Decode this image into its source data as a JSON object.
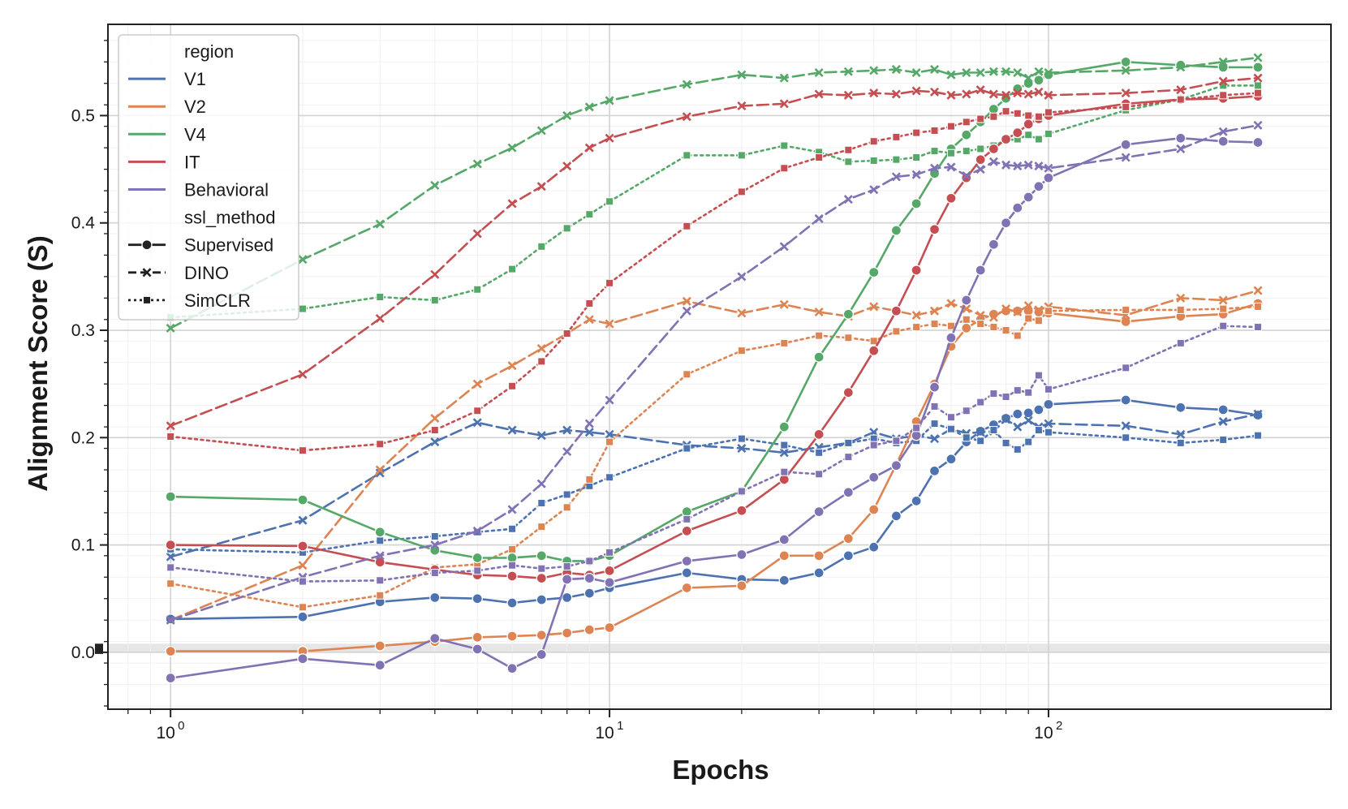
{
  "chart_data": {
    "type": "line",
    "title": "",
    "xlabel": "Epochs",
    "ylabel": "Alignment Score (S)",
    "xscale": "log",
    "xlim": [
      0.72,
      440
    ],
    "ylim": [
      -0.053,
      0.585
    ],
    "yticks": [
      0.0,
      0.1,
      0.2,
      0.3,
      0.4,
      0.5
    ],
    "ytick_labels": [
      "0.0",
      "0.1",
      "0.2",
      "0.3",
      "0.4",
      "0.5"
    ],
    "xticks": [
      {
        "value": 1,
        "base": "10",
        "exp": "0"
      },
      {
        "value": 10,
        "base": "10",
        "exp": "1"
      },
      {
        "value": 100,
        "base": "10",
        "exp": "2"
      }
    ],
    "grid": true,
    "reference_band": [
      0.0,
      0.008
    ],
    "legend": {
      "placement": "top-left",
      "hue_title": "region",
      "style_title": "ssl_method",
      "regions": [
        {
          "name": "V1",
          "color": "#4c72b0"
        },
        {
          "name": "V2",
          "color": "#dd8452"
        },
        {
          "name": "V4",
          "color": "#55a868"
        },
        {
          "name": "IT",
          "color": "#c44e52"
        },
        {
          "name": "Behavioral",
          "color": "#8172b3"
        }
      ],
      "methods": [
        {
          "name": "Supervised",
          "dash": "solid",
          "marker": "circle"
        },
        {
          "name": "DINO",
          "dash": "dashed",
          "marker": "x"
        },
        {
          "name": "SimCLR",
          "dash": "dotted",
          "marker": "square"
        }
      ]
    },
    "series": [
      {
        "region": "V1",
        "method": "Supervised",
        "color": "#4c72b0",
        "x": [
          1,
          2,
          3,
          4,
          5,
          6,
          7,
          8,
          9,
          10,
          15,
          20,
          25,
          30,
          35,
          40,
          45,
          50,
          55,
          60,
          65,
          70,
          75,
          80,
          85,
          90,
          95,
          100,
          150,
          200,
          250,
          300
        ],
        "y": [
          0.031,
          0.033,
          0.047,
          0.051,
          0.05,
          0.046,
          0.049,
          0.051,
          0.055,
          0.06,
          0.074,
          0.068,
          0.067,
          0.074,
          0.09,
          0.098,
          0.127,
          0.141,
          0.169,
          0.18,
          0.196,
          0.206,
          0.212,
          0.218,
          0.222,
          0.223,
          0.226,
          0.231,
          0.235,
          0.228,
          0.226,
          0.221
        ]
      },
      {
        "region": "V1",
        "method": "DINO",
        "color": "#4c72b0",
        "x": [
          1,
          2,
          3,
          4,
          5,
          6,
          7,
          8,
          9,
          10,
          15,
          20,
          25,
          30,
          35,
          40,
          45,
          50,
          55,
          60,
          65,
          70,
          75,
          80,
          85,
          90,
          95,
          100,
          150,
          200,
          250,
          300
        ],
        "y": [
          0.089,
          0.123,
          0.167,
          0.196,
          0.214,
          0.207,
          0.202,
          0.207,
          0.205,
          0.203,
          0.193,
          0.19,
          0.186,
          0.191,
          0.195,
          0.205,
          0.199,
          0.202,
          0.199,
          0.208,
          0.204,
          0.205,
          0.206,
          0.217,
          0.21,
          0.216,
          0.21,
          0.213,
          0.211,
          0.203,
          0.215,
          0.222
        ]
      },
      {
        "region": "V1",
        "method": "SimCLR",
        "color": "#4c72b0",
        "x": [
          1,
          2,
          3,
          4,
          5,
          6,
          7,
          8,
          9,
          10,
          15,
          20,
          25,
          30,
          35,
          40,
          45,
          50,
          55,
          60,
          65,
          70,
          75,
          80,
          85,
          90,
          95,
          100,
          150,
          200,
          250,
          300
        ],
        "y": [
          0.096,
          0.093,
          0.104,
          0.108,
          0.112,
          0.115,
          0.139,
          0.147,
          0.155,
          0.163,
          0.19,
          0.199,
          0.193,
          0.186,
          0.195,
          0.199,
          0.195,
          0.197,
          0.213,
          0.208,
          0.2,
          0.197,
          0.207,
          0.195,
          0.189,
          0.196,
          0.207,
          0.205,
          0.2,
          0.195,
          0.198,
          0.202
        ]
      },
      {
        "region": "V2",
        "method": "Supervised",
        "color": "#dd8452",
        "x": [
          1,
          2,
          3,
          4,
          5,
          6,
          7,
          8,
          9,
          10,
          15,
          20,
          25,
          30,
          35,
          40,
          45,
          50,
          55,
          60,
          65,
          70,
          75,
          80,
          85,
          90,
          95,
          100,
          150,
          200,
          250,
          300
        ],
        "y": [
          0.001,
          0.001,
          0.006,
          0.01,
          0.014,
          0.015,
          0.016,
          0.018,
          0.021,
          0.023,
          0.06,
          0.062,
          0.09,
          0.09,
          0.106,
          0.133,
          0.175,
          0.215,
          0.25,
          0.285,
          0.302,
          0.31,
          0.315,
          0.318,
          0.318,
          0.318,
          0.317,
          0.316,
          0.308,
          0.313,
          0.315,
          0.325
        ]
      },
      {
        "region": "V2",
        "method": "DINO",
        "color": "#dd8452",
        "x": [
          1,
          2,
          3,
          4,
          5,
          6,
          7,
          8,
          9,
          10,
          15,
          20,
          25,
          30,
          35,
          40,
          45,
          50,
          55,
          60,
          65,
          70,
          75,
          80,
          85,
          90,
          95,
          100,
          150,
          200,
          250,
          300
        ],
        "y": [
          0.03,
          0.081,
          0.17,
          0.218,
          0.25,
          0.267,
          0.283,
          0.297,
          0.31,
          0.306,
          0.327,
          0.316,
          0.324,
          0.317,
          0.313,
          0.322,
          0.318,
          0.314,
          0.318,
          0.325,
          0.32,
          0.314,
          0.312,
          0.32,
          0.317,
          0.323,
          0.319,
          0.322,
          0.314,
          0.33,
          0.328,
          0.337
        ]
      },
      {
        "region": "V2",
        "method": "SimCLR",
        "color": "#dd8452",
        "x": [
          1,
          2,
          3,
          4,
          5,
          6,
          7,
          8,
          9,
          10,
          15,
          20,
          25,
          30,
          35,
          40,
          45,
          50,
          55,
          60,
          65,
          70,
          75,
          80,
          85,
          90,
          95,
          100,
          150,
          200,
          250,
          300
        ],
        "y": [
          0.064,
          0.042,
          0.053,
          0.079,
          0.082,
          0.096,
          0.117,
          0.135,
          0.161,
          0.196,
          0.259,
          0.281,
          0.288,
          0.295,
          0.293,
          0.29,
          0.299,
          0.303,
          0.306,
          0.304,
          0.31,
          0.306,
          0.303,
          0.3,
          0.295,
          0.311,
          0.309,
          0.318,
          0.319,
          0.319,
          0.32,
          0.322
        ]
      },
      {
        "region": "V4",
        "method": "Supervised",
        "color": "#55a868",
        "x": [
          1,
          2,
          3,
          4,
          5,
          6,
          7,
          8,
          9,
          10,
          15,
          20,
          25,
          30,
          35,
          40,
          45,
          50,
          55,
          60,
          65,
          70,
          75,
          80,
          85,
          90,
          95,
          100,
          150,
          200,
          250,
          300
        ],
        "y": [
          0.145,
          0.142,
          0.112,
          0.095,
          0.088,
          0.088,
          0.09,
          0.085,
          0.085,
          0.09,
          0.131,
          0.15,
          0.21,
          0.275,
          0.315,
          0.354,
          0.393,
          0.418,
          0.446,
          0.469,
          0.482,
          0.494,
          0.506,
          0.516,
          0.525,
          0.53,
          0.533,
          0.538,
          0.55,
          0.547,
          0.545,
          0.545
        ]
      },
      {
        "region": "V4",
        "method": "DINO",
        "color": "#55a868",
        "x": [
          1,
          2,
          3,
          4,
          5,
          6,
          7,
          8,
          9,
          10,
          15,
          20,
          25,
          30,
          35,
          40,
          45,
          50,
          55,
          60,
          65,
          70,
          75,
          80,
          85,
          90,
          95,
          100,
          150,
          200,
          250,
          300
        ],
        "y": [
          0.302,
          0.366,
          0.399,
          0.435,
          0.455,
          0.47,
          0.486,
          0.5,
          0.508,
          0.514,
          0.529,
          0.538,
          0.535,
          0.54,
          0.541,
          0.542,
          0.543,
          0.54,
          0.543,
          0.538,
          0.54,
          0.54,
          0.541,
          0.541,
          0.54,
          0.535,
          0.541,
          0.54,
          0.542,
          0.545,
          0.55,
          0.554
        ]
      },
      {
        "region": "V4",
        "method": "SimCLR",
        "color": "#55a868",
        "x": [
          1,
          2,
          3,
          4,
          5,
          6,
          7,
          8,
          9,
          10,
          15,
          20,
          25,
          30,
          35,
          40,
          45,
          50,
          55,
          60,
          65,
          70,
          75,
          80,
          85,
          90,
          95,
          100,
          150,
          200,
          250,
          300
        ],
        "y": [
          0.312,
          0.32,
          0.331,
          0.328,
          0.338,
          0.357,
          0.378,
          0.395,
          0.408,
          0.42,
          0.463,
          0.463,
          0.472,
          0.466,
          0.457,
          0.458,
          0.459,
          0.461,
          0.467,
          0.465,
          0.467,
          0.469,
          0.472,
          0.477,
          0.478,
          0.482,
          0.478,
          0.483,
          0.505,
          0.515,
          0.528,
          0.528
        ]
      },
      {
        "region": "IT",
        "method": "Supervised",
        "color": "#c44e52",
        "x": [
          1,
          2,
          3,
          4,
          5,
          6,
          7,
          8,
          9,
          10,
          15,
          20,
          25,
          30,
          35,
          40,
          45,
          50,
          55,
          60,
          65,
          70,
          75,
          80,
          85,
          90,
          95,
          100,
          150,
          200,
          250,
          300
        ],
        "y": [
          0.1,
          0.099,
          0.084,
          0.077,
          0.072,
          0.071,
          0.069,
          0.074,
          0.072,
          0.076,
          0.113,
          0.132,
          0.161,
          0.203,
          0.242,
          0.281,
          0.318,
          0.356,
          0.394,
          0.423,
          0.442,
          0.459,
          0.469,
          0.478,
          0.484,
          0.492,
          0.497,
          0.5,
          0.511,
          0.515,
          0.516,
          0.518
        ]
      },
      {
        "region": "IT",
        "method": "DINO",
        "color": "#c44e52",
        "x": [
          1,
          2,
          3,
          4,
          5,
          6,
          7,
          8,
          9,
          10,
          15,
          20,
          25,
          30,
          35,
          40,
          45,
          50,
          55,
          60,
          65,
          70,
          75,
          80,
          85,
          90,
          95,
          100,
          150,
          200,
          250,
          300
        ],
        "y": [
          0.211,
          0.259,
          0.311,
          0.352,
          0.39,
          0.418,
          0.434,
          0.453,
          0.47,
          0.479,
          0.499,
          0.509,
          0.511,
          0.52,
          0.519,
          0.521,
          0.52,
          0.523,
          0.522,
          0.519,
          0.52,
          0.524,
          0.52,
          0.519,
          0.521,
          0.52,
          0.522,
          0.519,
          0.521,
          0.524,
          0.532,
          0.535
        ]
      },
      {
        "region": "IT",
        "method": "SimCLR",
        "color": "#c44e52",
        "x": [
          1,
          2,
          3,
          4,
          5,
          6,
          7,
          8,
          9,
          10,
          15,
          20,
          25,
          30,
          35,
          40,
          45,
          50,
          55,
          60,
          65,
          70,
          75,
          80,
          85,
          90,
          95,
          100,
          150,
          200,
          250,
          300
        ],
        "y": [
          0.201,
          0.188,
          0.194,
          0.207,
          0.225,
          0.248,
          0.271,
          0.297,
          0.325,
          0.344,
          0.397,
          0.429,
          0.451,
          0.461,
          0.468,
          0.476,
          0.48,
          0.484,
          0.486,
          0.49,
          0.494,
          0.497,
          0.499,
          0.504,
          0.502,
          0.5,
          0.499,
          0.503,
          0.508,
          0.515,
          0.519,
          0.521
        ]
      },
      {
        "region": "Behavioral",
        "method": "Supervised",
        "color": "#8172b3",
        "x": [
          1,
          2,
          3,
          4,
          5,
          6,
          7,
          8,
          9,
          10,
          15,
          20,
          25,
          30,
          35,
          40,
          45,
          50,
          55,
          60,
          65,
          70,
          75,
          80,
          85,
          90,
          95,
          100,
          150,
          200,
          250,
          300
        ],
        "y": [
          -0.024,
          -0.006,
          -0.012,
          0.013,
          0.003,
          -0.015,
          -0.002,
          0.068,
          0.069,
          0.065,
          0.085,
          0.091,
          0.105,
          0.131,
          0.149,
          0.163,
          0.174,
          0.202,
          0.247,
          0.293,
          0.328,
          0.356,
          0.38,
          0.4,
          0.414,
          0.424,
          0.434,
          0.442,
          0.473,
          0.479,
          0.476,
          0.475
        ]
      },
      {
        "region": "Behavioral",
        "method": "DINO",
        "color": "#8172b3",
        "x": [
          1,
          2,
          3,
          4,
          5,
          6,
          7,
          8,
          9,
          10,
          15,
          20,
          25,
          30,
          35,
          40,
          45,
          50,
          55,
          60,
          65,
          70,
          75,
          80,
          85,
          90,
          95,
          100,
          150,
          200,
          250,
          300
        ],
        "y": [
          0.03,
          0.07,
          0.09,
          0.1,
          0.113,
          0.133,
          0.157,
          0.187,
          0.213,
          0.235,
          0.318,
          0.35,
          0.378,
          0.404,
          0.422,
          0.431,
          0.443,
          0.445,
          0.451,
          0.452,
          0.444,
          0.45,
          0.457,
          0.454,
          0.453,
          0.454,
          0.453,
          0.451,
          0.461,
          0.469,
          0.485,
          0.491
        ]
      },
      {
        "region": "Behavioral",
        "method": "SimCLR",
        "color": "#8172b3",
        "x": [
          1,
          2,
          3,
          4,
          5,
          6,
          7,
          8,
          9,
          10,
          15,
          20,
          25,
          30,
          35,
          40,
          45,
          50,
          55,
          60,
          65,
          70,
          75,
          80,
          85,
          90,
          95,
          100,
          150,
          200,
          250,
          300
        ],
        "y": [
          0.079,
          0.066,
          0.067,
          0.074,
          0.076,
          0.081,
          0.078,
          0.08,
          0.085,
          0.093,
          0.124,
          0.15,
          0.168,
          0.166,
          0.182,
          0.193,
          0.197,
          0.209,
          0.229,
          0.219,
          0.225,
          0.233,
          0.241,
          0.238,
          0.244,
          0.242,
          0.258,
          0.245,
          0.265,
          0.288,
          0.304,
          0.303
        ]
      }
    ]
  }
}
